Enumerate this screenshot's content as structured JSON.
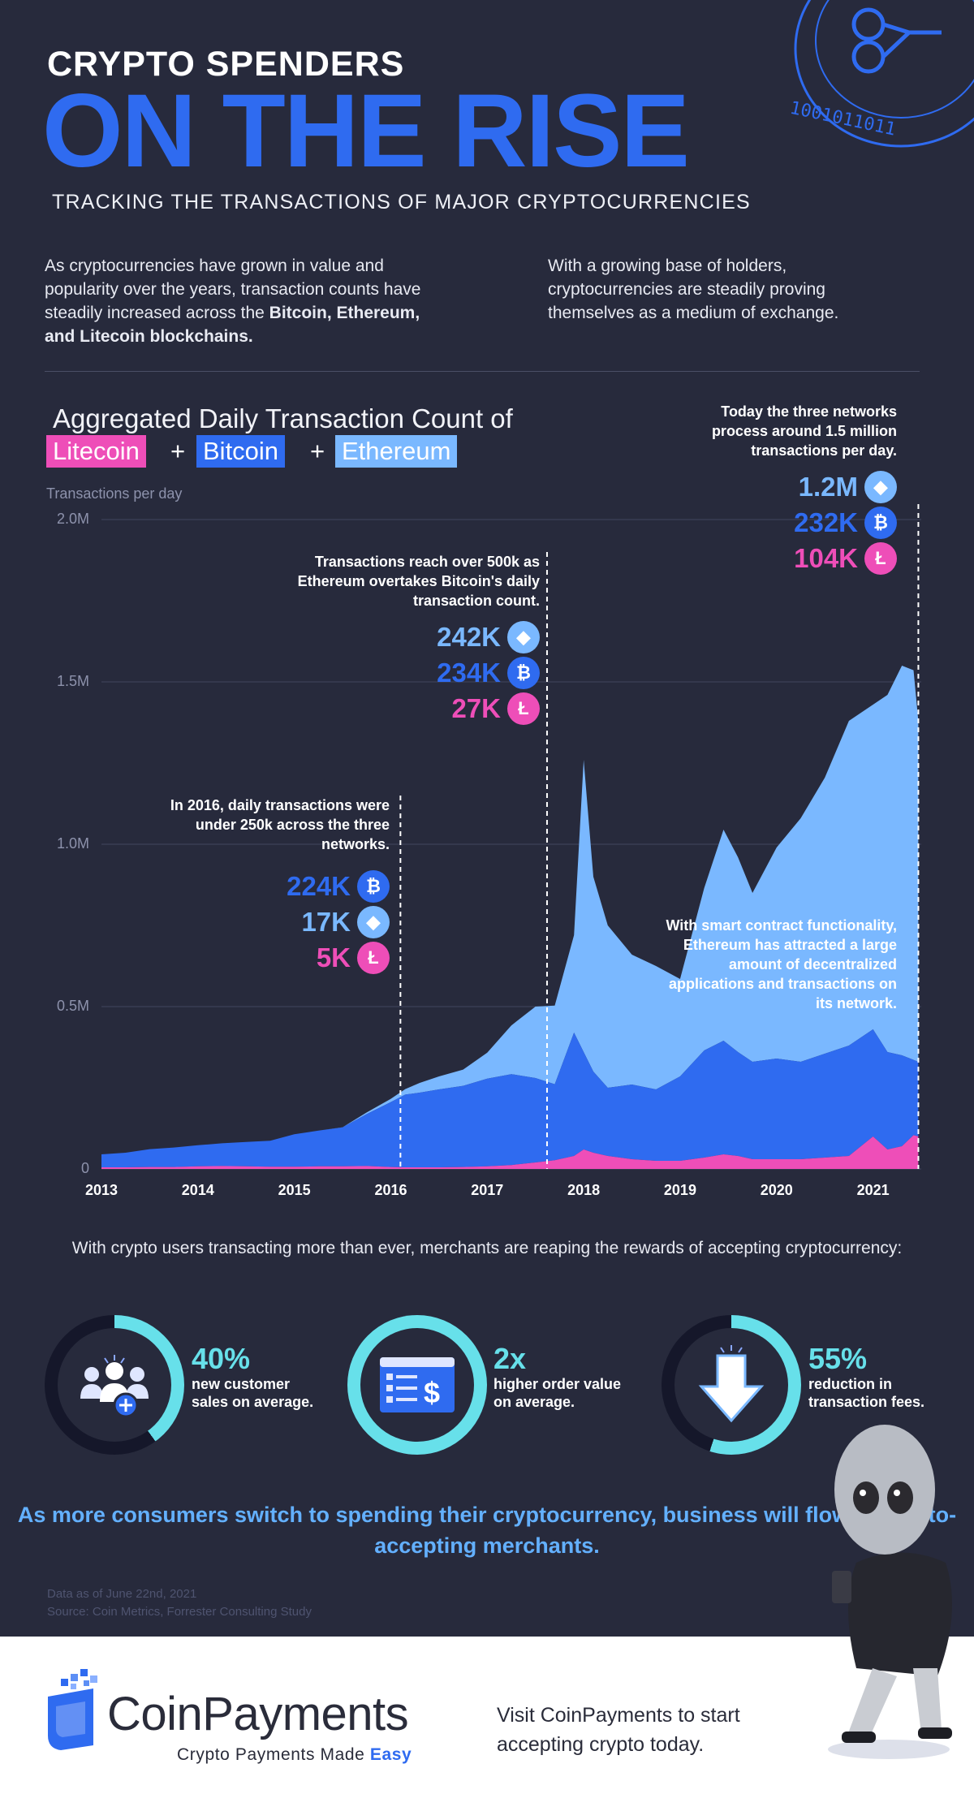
{
  "header": {
    "title_small": "CRYPTO SPENDERS",
    "title_big": "ON THE RISE",
    "subtitle": "TRACKING THE TRANSACTIONS OF MAJOR CRYPTOCURRENCIES"
  },
  "intro": {
    "left_plain": "As cryptocurrencies have grown in value and popularity over the years, transaction counts have steadily increased across the",
    "left_bold": "Bitcoin, Ethereum, and Litecoin blockchains.",
    "right": "With a growing base of holders, cryptocurrencies are steadily proving themselves as a medium of exchange."
  },
  "chart_heading": {
    "title": "Aggregated Daily Transaction Count of",
    "tags": [
      "Litecoin",
      "Bitcoin",
      "Ethereum"
    ],
    "plus": "+",
    "ylabel": "Transactions per day"
  },
  "colors": {
    "background": "#272a3c",
    "litecoin": "#ee4eb8",
    "bitcoin": "#2f6bf0",
    "ethereum": "#7ab8ff",
    "accent_teal": "#67e0ea",
    "closing_text": "#63b0ff"
  },
  "chart_data": {
    "type": "area",
    "stacked": true,
    "title": "Aggregated Daily Transaction Count of Litecoin + Bitcoin + Ethereum",
    "ylabel": "Transactions per day",
    "ylim": [
      0,
      2000000
    ],
    "y_ticks": [
      0,
      500000,
      1000000,
      1500000,
      2000000
    ],
    "y_tick_labels": [
      "0",
      "0.5M",
      "1.0M",
      "1.5M",
      "2.0M"
    ],
    "x_range": [
      2013.0,
      2021.5
    ],
    "x_ticks": [
      2013,
      2014,
      2015,
      2016,
      2017,
      2018,
      2019,
      2020,
      2021
    ],
    "x_tick_labels": [
      "2013",
      "2014",
      "2015",
      "2016",
      "2017",
      "2018",
      "2019",
      "2020",
      "2021"
    ],
    "grid": true,
    "x": [
      2013.0,
      2013.25,
      2013.5,
      2013.75,
      2014.0,
      2014.25,
      2014.5,
      2014.75,
      2015.0,
      2015.25,
      2015.5,
      2015.75,
      2016.0,
      2016.15,
      2016.3,
      2016.5,
      2016.75,
      2017.0,
      2017.25,
      2017.5,
      2017.7,
      2017.9,
      2018.0,
      2018.1,
      2018.25,
      2018.5,
      2018.75,
      2019.0,
      2019.25,
      2019.45,
      2019.6,
      2019.75,
      2020.0,
      2020.25,
      2020.5,
      2020.75,
      2021.0,
      2021.15,
      2021.3,
      2021.42,
      2021.47
    ],
    "series": [
      {
        "name": "Litecoin",
        "values": [
          5000,
          5000,
          6000,
          6000,
          8000,
          9000,
          8000,
          7000,
          7000,
          8000,
          8000,
          9000,
          6000,
          5000,
          5000,
          5000,
          6000,
          8000,
          12000,
          20000,
          27000,
          40000,
          60000,
          50000,
          40000,
          30000,
          25000,
          25000,
          35000,
          45000,
          40000,
          30000,
          30000,
          30000,
          35000,
          40000,
          100000,
          60000,
          70000,
          104000,
          100000
        ]
      },
      {
        "name": "Bitcoin",
        "values": [
          40000,
          45000,
          55000,
          60000,
          65000,
          70000,
          75000,
          80000,
          100000,
          110000,
          120000,
          160000,
          200000,
          224000,
          230000,
          240000,
          250000,
          270000,
          280000,
          260000,
          234000,
          380000,
          300000,
          250000,
          210000,
          230000,
          220000,
          260000,
          330000,
          350000,
          320000,
          300000,
          310000,
          300000,
          320000,
          340000,
          330000,
          300000,
          280000,
          232000,
          230000
        ]
      },
      {
        "name": "Ethereum",
        "values": [
          0,
          0,
          0,
          0,
          0,
          0,
          0,
          0,
          0,
          0,
          500,
          5000,
          10000,
          17000,
          30000,
          40000,
          50000,
          80000,
          150000,
          220000,
          242000,
          300000,
          900000,
          600000,
          500000,
          400000,
          380000,
          300000,
          500000,
          650000,
          600000,
          520000,
          650000,
          750000,
          850000,
          1000000,
          1000000,
          1100000,
          1200000,
          1200000,
          1050000
        ]
      }
    ],
    "annotations": [
      {
        "x": 2016.1,
        "text": "In 2016, daily transactions were under 250k across the three networks.",
        "stats": [
          {
            "value": "224K",
            "coin": "btc"
          },
          {
            "value": "17K",
            "coin": "eth"
          },
          {
            "value": "5K",
            "coin": "ltc"
          }
        ]
      },
      {
        "x": 2017.62,
        "text": "Transactions reach over 500k as Ethereum overtakes Bitcoin's daily transaction count.",
        "stats": [
          {
            "value": "242K",
            "coin": "eth"
          },
          {
            "value": "234K",
            "coin": "btc"
          },
          {
            "value": "27K",
            "coin": "ltc"
          }
        ]
      },
      {
        "x": 2021.47,
        "text": "Today the three networks process around 1.5 million transactions per day.",
        "stats": [
          {
            "value": "1.2M",
            "coin": "eth"
          },
          {
            "value": "232K",
            "coin": "btc"
          },
          {
            "value": "104K",
            "coin": "ltc"
          }
        ]
      },
      {
        "text": "With smart contract functionality, Ethereum has attracted a large amount of decentralized applications and transactions on its network."
      }
    ]
  },
  "merchants": {
    "intro": "With crypto users transacting more than ever, merchants are reaping the rewards of accepting cryptocurrency:",
    "benefits": [
      {
        "value": "40%",
        "text": "new customer sales on average.",
        "icon": "users-add-icon",
        "fraction": 0.4
      },
      {
        "value": "2x",
        "text": "higher order value on average.",
        "icon": "invoice-dollar-icon",
        "fraction": 1.0
      },
      {
        "value": "55%",
        "text": "reduction in transaction fees.",
        "icon": "arrow-down-icon",
        "fraction": 0.55
      }
    ]
  },
  "closing": "As more consumers switch to spending their cryptocurrency, business will flow to crypto-accepting merchants.",
  "sources": {
    "date": "Data as of June 22nd, 2021",
    "source": "Source: Coin Metrics, Forrester Consulting Study"
  },
  "footer": {
    "brand": "CoinPayments",
    "tagline_plain": "Crypto Payments Made",
    "tagline_bold": "Easy",
    "cta": "Visit CoinPayments to start accepting crypto today."
  }
}
